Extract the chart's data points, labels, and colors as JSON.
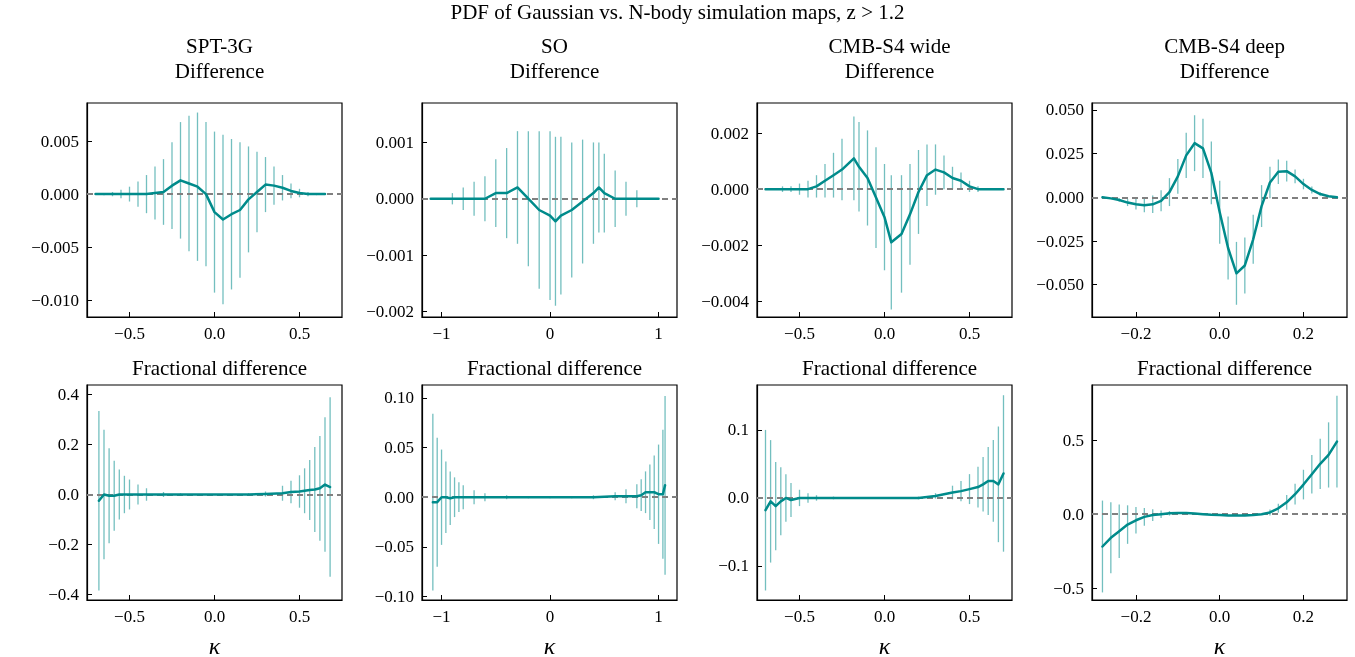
{
  "chart_data": [
    {
      "type": "line",
      "title": "SPT-3G",
      "subtitle": "Difference",
      "annotations": [
        "PDF of Gaussian vs. N-body simulation maps, z > 1.2"
      ],
      "color": "#008b8b",
      "marker": "none",
      "line_style": "solid",
      "x": [
        -0.7,
        -0.65,
        -0.6,
        -0.55,
        -0.5,
        -0.45,
        -0.4,
        -0.35,
        -0.3,
        -0.25,
        -0.2,
        -0.15,
        -0.1,
        -0.05,
        0,
        0.05,
        0.1,
        0.15,
        0.2,
        0.25,
        0.3,
        0.35,
        0.4,
        0.45,
        0.5,
        0.55,
        0.6,
        0.65
      ],
      "values": [
        0,
        0,
        0,
        0,
        0,
        0,
        0,
        0.0001,
        0.0002,
        0.0008,
        0.0013,
        0.001,
        0.0007,
        0,
        -0.0017,
        -0.0024,
        -0.0019,
        -0.0015,
        -0.0005,
        0.0002,
        0.0009,
        0.0008,
        0.0006,
        0.0003,
        0.0001,
        0,
        0,
        0
      ],
      "errors": [
        null,
        0.0001,
        0.0002,
        0.0004,
        0.0007,
        0.0012,
        0.0018,
        0.0025,
        0.0031,
        0.0041,
        0.0055,
        0.0064,
        0.007,
        0.0068,
        0.0076,
        0.008,
        0.0071,
        0.0064,
        0.005,
        0.0038,
        0.0026,
        0.0018,
        0.0012,
        0.0007,
        0.0004,
        0.0002,
        0.0001,
        null
      ],
      "xlim": [
        -0.75,
        0.75
      ],
      "xticks": [
        {
          "value": -0.5,
          "label": "−0.5"
        },
        {
          "value": 0,
          "label": "0.0"
        },
        0.5
      ],
      "ylim": [
        -0.0116,
        0.0086
      ],
      "yticks": [
        {
          "value": -0.01,
          "label": "−0.010"
        },
        {
          "value": -0.005,
          "label": "−0.005"
        },
        {
          "value": 0,
          "label": "0.000"
        },
        0.005
      ],
      "ref_lines": [
        {
          "axis": "y",
          "value": 0,
          "color": "#808080",
          "line_style": "dashed"
        }
      ]
    },
    {
      "type": "line",
      "title": "SO",
      "subtitle": "Difference",
      "color": "#008b8b",
      "marker": "none",
      "line_style": "solid",
      "x": [
        -1.1,
        -1.0,
        -0.9,
        -0.8,
        -0.7,
        -0.6,
        -0.5,
        -0.4,
        -0.3,
        -0.2,
        -0.1,
        0,
        0.05,
        0.1,
        0.2,
        0.3,
        0.4,
        0.45,
        0.5,
        0.6,
        0.7,
        0.8,
        0.9,
        1.0
      ],
      "values": [
        0,
        0,
        0,
        0,
        0,
        0,
        0.0001,
        0.0001,
        0.0002,
        0,
        -0.0002,
        -0.0003,
        -0.0004,
        -0.0003,
        -0.0002,
        -5e-05,
        0.0001,
        0.0002,
        0.0001,
        0,
        0,
        0,
        0,
        0
      ],
      "errors": [
        null,
        null,
        0.0001,
        0.0002,
        0.0003,
        0.0004,
        0.0006,
        0.0008,
        0.001,
        0.0012,
        0.0014,
        0.0015,
        0.0015,
        0.0014,
        0.0012,
        0.0011,
        0.0009,
        0.0008,
        0.0007,
        0.0005,
        0.0003,
        0.00015,
        null,
        null
      ],
      "xlim": [
        -1.18,
        1.17
      ],
      "xticks": [
        {
          "value": -1,
          "label": "−1"
        },
        0,
        1
      ],
      "ylim": [
        -0.0021,
        0.0017
      ],
      "yticks": [
        {
          "value": -0.002,
          "label": "−0.002"
        },
        {
          "value": -0.001,
          "label": "−0.001"
        },
        {
          "value": 0,
          "label": "0.000"
        },
        0.001
      ],
      "ref_lines": [
        {
          "axis": "y",
          "value": 0,
          "color": "#808080",
          "line_style": "dashed"
        }
      ]
    },
    {
      "type": "line",
      "title": "CMB-S4 wide",
      "subtitle": "Difference",
      "color": "#008b8b",
      "marker": "none",
      "line_style": "solid",
      "x": [
        -0.7,
        -0.65,
        -0.6,
        -0.55,
        -0.5,
        -0.45,
        -0.4,
        -0.35,
        -0.3,
        -0.25,
        -0.18,
        -0.15,
        -0.1,
        -0.05,
        0,
        0.04,
        0.1,
        0.15,
        0.2,
        0.25,
        0.3,
        0.35,
        0.4,
        0.45,
        0.5,
        0.55,
        0.6,
        0.65,
        0.7
      ],
      "values": [
        0,
        0,
        0,
        0,
        0,
        0,
        0.0001,
        0.0003,
        0.0005,
        0.0007,
        0.0011,
        0.0008,
        0.0004,
        -0.0003,
        -0.001,
        -0.0019,
        -0.0016,
        -0.0009,
        -0.0001,
        0.0005,
        0.0007,
        0.0006,
        0.0004,
        0.0003,
        0.0001,
        0,
        0,
        0,
        0
      ],
      "errors": [
        null,
        null,
        0.0001,
        0.0001,
        0.0002,
        0.0003,
        0.0004,
        0.0006,
        0.0008,
        0.0011,
        0.0015,
        0.0016,
        0.0017,
        0.0018,
        0.0019,
        0.0024,
        0.0021,
        0.0018,
        0.0015,
        0.0011,
        0.0009,
        0.0006,
        0.0004,
        0.0003,
        0.0002,
        0.0001,
        null,
        null,
        null
      ],
      "xlim": [
        -0.75,
        0.75
      ],
      "xticks": [
        {
          "value": -0.5,
          "label": "−0.5"
        },
        {
          "value": 0,
          "label": "0.0"
        },
        0.5
      ],
      "ylim": [
        -0.00457,
        0.00308
      ],
      "yticks": [
        {
          "value": -0.004,
          "label": "−0.004"
        },
        {
          "value": -0.002,
          "label": "−0.002"
        },
        {
          "value": 0,
          "label": "0.000"
        },
        0.002
      ],
      "ref_lines": [
        {
          "axis": "y",
          "value": 0,
          "color": "#808080",
          "line_style": "dashed"
        }
      ]
    },
    {
      "type": "line",
      "title": "CMB-S4 deep",
      "subtitle": "Difference",
      "color": "#008b8b",
      "marker": "none",
      "line_style": "solid",
      "x": [
        -0.28,
        -0.26,
        -0.24,
        -0.22,
        -0.2,
        -0.18,
        -0.16,
        -0.14,
        -0.12,
        -0.1,
        -0.08,
        -0.06,
        -0.04,
        -0.02,
        0,
        0.02,
        0.04,
        0.06,
        0.08,
        0.1,
        0.12,
        0.14,
        0.16,
        0.18,
        0.2,
        0.22,
        0.24,
        0.26,
        0.28
      ],
      "values": [
        0,
        -0.0006,
        -0.0015,
        -0.003,
        -0.004,
        -0.0045,
        -0.004,
        -0.002,
        0.003,
        0.012,
        0.024,
        0.031,
        0.028,
        0.014,
        -0.0085,
        -0.029,
        -0.0435,
        -0.039,
        -0.024,
        -0.005,
        0.0085,
        0.0146,
        0.015,
        0.012,
        0.0076,
        0.0042,
        0.0019,
        0.0006,
        0
      ],
      "errors": [
        null,
        null,
        0.001,
        0.002,
        0.003,
        0.004,
        0.005,
        0.006,
        0.008,
        0.01,
        0.013,
        0.016,
        0.017,
        0.018,
        0.018,
        0.018,
        0.018,
        0.016,
        0.014,
        0.012,
        0.009,
        0.007,
        0.006,
        0.004,
        0.003,
        0.002,
        0.001,
        null,
        null
      ],
      "xlim": [
        -0.305,
        0.304
      ],
      "xticks": [
        {
          "value": -0.2,
          "label": "−0.2"
        },
        {
          "value": 0,
          "label": "0.0"
        },
        0.2
      ],
      "ylim": [
        -0.0685,
        0.054
      ],
      "yticks": [
        {
          "value": -0.05,
          "label": "−0.050"
        },
        {
          "value": -0.025,
          "label": "−0.025"
        },
        {
          "value": 0,
          "label": "0.000"
        },
        0.025,
        {
          "value": 0.05,
          "label": "0.050"
        }
      ],
      "ref_lines": [
        {
          "axis": "y",
          "value": 0,
          "color": "#808080",
          "line_style": "dashed"
        }
      ]
    },
    {
      "type": "line",
      "title": "Fractional difference",
      "xlabel": "κ",
      "color": "#008b8b",
      "marker": "none",
      "line_style": "solid",
      "x": [
        -0.68,
        -0.65,
        -0.62,
        -0.59,
        -0.56,
        -0.53,
        -0.5,
        -0.45,
        -0.4,
        -0.3,
        -0.2,
        -0.1,
        0,
        0.1,
        0.2,
        0.3,
        0.4,
        0.45,
        0.5,
        0.53,
        0.56,
        0.59,
        0.62,
        0.65,
        0.68
      ],
      "values": [
        -0.025,
        0,
        -0.005,
        -0.005,
        0,
        0,
        0,
        0,
        0,
        0,
        0,
        0,
        0,
        0,
        0,
        0.002,
        0.005,
        0.01,
        0.012,
        0.015,
        0.018,
        0.02,
        0.025,
        0.04,
        0.03
      ],
      "errors": [
        0.36,
        0.26,
        0.19,
        0.14,
        0.1,
        0.075,
        0.06,
        0.04,
        0.025,
        0.01,
        0.005,
        null,
        null,
        null,
        0.005,
        0.01,
        0.03,
        0.045,
        0.065,
        0.09,
        0.12,
        0.17,
        0.21,
        0.27,
        0.36
      ],
      "xlim": [
        -0.75,
        0.75
      ],
      "xticks": [
        {
          "value": -0.5,
          "label": "−0.5"
        },
        {
          "value": 0,
          "label": "0.0"
        },
        0.5
      ],
      "ylim": [
        -0.423,
        0.439
      ],
      "yticks": [
        {
          "value": -0.4,
          "label": "−0.4"
        },
        {
          "value": -0.2,
          "label": "−0.2"
        },
        {
          "value": 0,
          "label": "0.0"
        },
        0.2,
        0.4
      ],
      "ref_lines": [
        {
          "axis": "y",
          "value": 0,
          "color": "#808080",
          "line_style": "dashed"
        }
      ]
    },
    {
      "type": "line",
      "title": "Fractional difference",
      "xlabel": "κ",
      "color": "#008b8b",
      "marker": "none",
      "line_style": "solid",
      "x": [
        -1.08,
        -1.04,
        -1.0,
        -0.96,
        -0.92,
        -0.88,
        -0.84,
        -0.8,
        -0.7,
        -0.6,
        -0.4,
        -0.2,
        0,
        0.2,
        0.4,
        0.6,
        0.7,
        0.8,
        0.84,
        0.88,
        0.92,
        0.96,
        1.0,
        1.04,
        1.06
      ],
      "values": [
        -0.005,
        -0.005,
        0,
        0,
        -0.001,
        0,
        0,
        0,
        0,
        0,
        0,
        0,
        0,
        0,
        0,
        0.001,
        0.001,
        0.001,
        0.002,
        0.005,
        0.005,
        0.005,
        0.003,
        0.003,
        0.012
      ],
      "errors": [
        0.089,
        0.065,
        0.048,
        0.036,
        0.027,
        0.02,
        0.015,
        0.012,
        0.007,
        0.004,
        0.002,
        0.001,
        0.001,
        0.001,
        0.002,
        0.004,
        0.007,
        0.012,
        0.016,
        0.021,
        0.028,
        0.037,
        0.05,
        0.065,
        0.09
      ],
      "xlim": [
        -1.18,
        1.17
      ],
      "xticks": [
        {
          "value": -1,
          "label": "−1"
        },
        0,
        1
      ],
      "ylim": [
        -0.1035,
        0.113
      ],
      "yticks": [
        {
          "value": -0.1,
          "label": "−0.10"
        },
        {
          "value": -0.05,
          "label": "−0.05"
        },
        {
          "value": 0,
          "label": "0.00"
        },
        0.05,
        {
          "value": 0.1,
          "label": "0.10"
        }
      ],
      "ref_lines": [
        {
          "axis": "y",
          "value": 0,
          "color": "#808080",
          "line_style": "dashed"
        }
      ]
    },
    {
      "type": "line",
      "title": "Fractional difference",
      "xlabel": "κ",
      "color": "#008b8b",
      "marker": "none",
      "line_style": "solid",
      "x": [
        -0.7,
        -0.67,
        -0.64,
        -0.61,
        -0.58,
        -0.55,
        -0.5,
        -0.45,
        -0.4,
        -0.3,
        -0.2,
        -0.1,
        0,
        0.1,
        0.2,
        0.3,
        0.4,
        0.45,
        0.5,
        0.55,
        0.58,
        0.61,
        0.64,
        0.67,
        0.7
      ],
      "values": [
        -0.018,
        -0.005,
        -0.012,
        -0.005,
        0,
        -0.003,
        0,
        0,
        0,
        0,
        0,
        0,
        0,
        0,
        0,
        0.003,
        0.008,
        0.01,
        0.013,
        0.016,
        0.02,
        0.025,
        0.025,
        0.02,
        0.036
      ],
      "errors": [
        0.118,
        0.09,
        0.065,
        0.05,
        0.035,
        0.025,
        0.012,
        0.007,
        0.004,
        0.002,
        null,
        null,
        null,
        null,
        0.002,
        0.004,
        0.01,
        0.015,
        0.022,
        0.03,
        0.04,
        0.05,
        0.06,
        0.085,
        0.115
      ],
      "xlim": [
        -0.75,
        0.75
      ],
      "xticks": [
        {
          "value": -0.5,
          "label": "−0.5"
        },
        {
          "value": 0,
          "label": "0.0"
        },
        0.5
      ],
      "ylim": [
        -0.15,
        0.166
      ],
      "yticks": [
        {
          "value": -0.1,
          "label": "−0.1"
        },
        {
          "value": 0,
          "label": "0.0"
        },
        0.1
      ],
      "ref_lines": [
        {
          "axis": "y",
          "value": 0,
          "color": "#808080",
          "line_style": "dashed"
        }
      ]
    },
    {
      "type": "line",
      "title": "Fractional difference",
      "xlabel": "κ",
      "color": "#008b8b",
      "marker": "none",
      "line_style": "solid",
      "x": [
        -0.28,
        -0.26,
        -0.24,
        -0.22,
        -0.2,
        -0.18,
        -0.16,
        -0.14,
        -0.12,
        -0.1,
        -0.08,
        -0.06,
        -0.04,
        -0.02,
        0,
        0.02,
        0.04,
        0.06,
        0.08,
        0.1,
        0.12,
        0.14,
        0.16,
        0.18,
        0.2,
        0.22,
        0.24,
        0.26,
        0.28
      ],
      "values": [
        -0.218,
        -0.159,
        -0.115,
        -0.07,
        -0.041,
        -0.018,
        -0.006,
        0,
        0.006,
        0.008,
        0.008,
        0.005,
        0,
        -0.004,
        -0.006,
        -0.008,
        -0.009,
        -0.008,
        -0.005,
        0,
        0.012,
        0.04,
        0.08,
        0.135,
        0.2,
        0.27,
        0.34,
        0.4,
        0.49
      ],
      "errors": [
        0.31,
        0.24,
        0.18,
        0.13,
        0.09,
        0.06,
        0.04,
        0.025,
        0.015,
        null,
        null,
        null,
        null,
        null,
        null,
        null,
        null,
        null,
        null,
        null,
        0.02,
        0.03,
        0.05,
        0.07,
        0.1,
        0.13,
        0.17,
        0.22,
        0.31
      ],
      "xlim": [
        -0.305,
        0.304
      ],
      "xticks": [
        {
          "value": -0.2,
          "label": "−0.2"
        },
        {
          "value": 0,
          "label": "0.0"
        },
        0.2
      ],
      "ylim": [
        -0.579,
        0.872
      ],
      "yticks": [
        {
          "value": -0.5,
          "label": "−0.5"
        },
        {
          "value": 0,
          "label": "0.0"
        },
        0.5
      ],
      "ref_lines": [
        {
          "axis": "y",
          "value": 0,
          "color": "#808080",
          "line_style": "dashed"
        }
      ]
    }
  ]
}
